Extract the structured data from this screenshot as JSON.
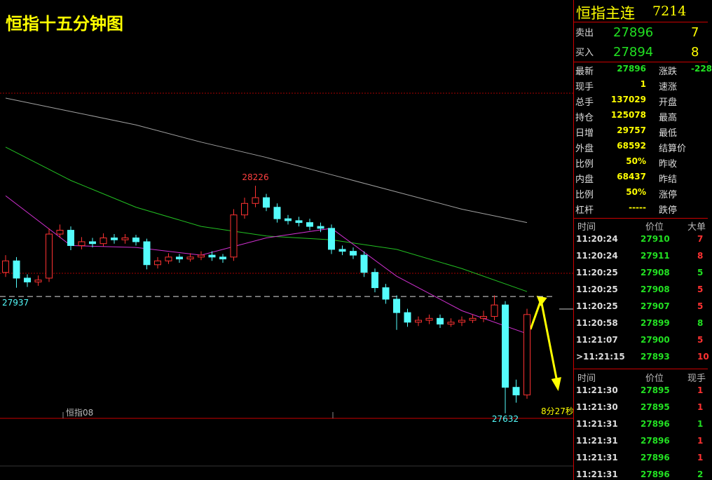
{
  "chart": {
    "type": "candlestick",
    "title": "恒指十五分钟图",
    "contract_label": "恒指08",
    "countdown": "8分27秒",
    "ylim": [
      27619,
      28711
    ],
    "open": [
      28000,
      28030,
      27985,
      27975,
      27985,
      28100,
      28110,
      28070,
      28080,
      28075,
      28090,
      28085,
      28090,
      28080,
      28020,
      28030,
      28040,
      28035,
      28040,
      28045,
      28040,
      28040,
      28150,
      28180,
      28195,
      28170,
      28140,
      28135,
      28130,
      28120,
      28115,
      28060,
      28055,
      28045,
      28000,
      27960,
      27930,
      27895,
      27870,
      27875,
      27880,
      27865,
      27870,
      27875,
      27880,
      27885,
      27915,
      27700,
      27680
    ],
    "high": [
      28045,
      28040,
      27995,
      27992,
      28115,
      28125,
      28120,
      28092,
      28090,
      28102,
      28100,
      28100,
      28098,
      28088,
      28040,
      28050,
      28048,
      28050,
      28055,
      28055,
      28048,
      28165,
      28195,
      28226,
      28205,
      28180,
      28150,
      28145,
      28140,
      28130,
      28125,
      28070,
      28065,
      28055,
      28010,
      27970,
      27940,
      27905,
      27885,
      27890,
      27890,
      27880,
      27885,
      27890,
      27900,
      27940,
      27925,
      27720,
      27905
    ],
    "low": [
      27988,
      27960,
      27962,
      27965,
      27975,
      28090,
      28058,
      28060,
      28065,
      28068,
      28075,
      28075,
      28070,
      28008,
      28010,
      28022,
      28025,
      28028,
      28032,
      28030,
      28025,
      28030,
      28140,
      28170,
      28160,
      28130,
      28125,
      28120,
      28110,
      28105,
      28048,
      28045,
      28035,
      27988,
      27948,
      27918,
      27850,
      27858,
      27860,
      27865,
      27855,
      27858,
      27860,
      27868,
      27870,
      27875,
      27632,
      27660,
      27670
    ],
    "close": [
      28030,
      27985,
      27975,
      27980,
      28100,
      28110,
      28070,
      28080,
      28075,
      28090,
      28085,
      28090,
      28080,
      28020,
      28030,
      28040,
      28035,
      28040,
      28045,
      28040,
      28035,
      28150,
      28180,
      28195,
      28170,
      28140,
      28135,
      28130,
      28120,
      28115,
      28060,
      28055,
      28045,
      28000,
      27960,
      27930,
      27895,
      27870,
      27875,
      27880,
      27865,
      27870,
      27875,
      27880,
      27885,
      27915,
      27700,
      27680,
      27890
    ],
    "up_color": "#ff3232",
    "down_color": "#54fcfc",
    "ma_lines": [
      {
        "color": "#a0a0a0",
        "x": [
          0,
          6,
          12,
          18,
          24,
          30,
          36,
          42,
          48
        ],
        "values": [
          28455,
          28420,
          28385,
          28340,
          28300,
          28255,
          28210,
          28165,
          28130
        ]
      },
      {
        "color": "#22c022",
        "x": [
          0,
          6,
          12,
          18,
          24,
          30,
          36,
          42,
          48
        ],
        "values": [
          28327,
          28240,
          28170,
          28120,
          28095,
          28085,
          28060,
          28010,
          27950
        ]
      },
      {
        "color": "#d030d0",
        "x": [
          0,
          6,
          12,
          18,
          24,
          30,
          36,
          42,
          48
        ],
        "values": [
          28200,
          28070,
          28065,
          28045,
          28090,
          28115,
          27990,
          27900,
          27840
        ]
      }
    ],
    "annotations": [
      {
        "text": "28226",
        "value": 28226,
        "index": 23
      },
      {
        "text": "27937",
        "value": 27937,
        "index": 0
      },
      {
        "text": "27632",
        "value": 27632,
        "index": 46
      }
    ],
    "reference_line": 27937
  },
  "panel": {
    "title": "恒指主连",
    "code": "7214",
    "quotes": [
      [
        "卖出",
        "27896",
        "7"
      ],
      [
        "买入",
        "27894",
        "8"
      ]
    ],
    "stats": [
      [
        "最新",
        "27896",
        "涨跌",
        "-228"
      ],
      [
        "现手",
        "1",
        "速涨",
        ""
      ],
      [
        "总手",
        "137029",
        "开盘",
        ""
      ],
      [
        "持仓",
        "125078",
        "最高",
        ""
      ],
      [
        "日增",
        "29757",
        "最低",
        ""
      ],
      [
        "外盘",
        "68592",
        "结算价",
        ""
      ],
      [
        "比例",
        "50%",
        "昨收",
        ""
      ],
      [
        "内盘",
        "68437",
        "昨结",
        ""
      ],
      [
        "比例",
        "50%",
        "涨停",
        ""
      ],
      [
        "杠杆",
        "-----",
        "跌停",
        ""
      ]
    ],
    "ticks_header": [
      "时间",
      "价位",
      "大单"
    ],
    "ticks": [
      [
        "11:20:24",
        "27910",
        "7"
      ],
      [
        "11:20:24",
        "27911",
        "8"
      ],
      [
        "11:20:25",
        "27908",
        "5"
      ],
      [
        "11:20:25",
        "27908",
        "5"
      ],
      [
        "11:20:25",
        "27907",
        "5"
      ],
      [
        "11:20:58",
        "27899",
        "8"
      ],
      [
        "11:21:07",
        "27900",
        "5"
      ],
      [
        ">11:21:15",
        "27893",
        "10"
      ]
    ],
    "trades_header": [
      "时间",
      "价位",
      "现手"
    ],
    "trades": [
      [
        "11:21:30",
        "27895",
        "1"
      ],
      [
        "11:21:30",
        "27895",
        "1"
      ],
      [
        "11:21:31",
        "27896",
        "1"
      ],
      [
        "11:21:31",
        "27896",
        "1"
      ],
      [
        "11:21:31",
        "27896",
        "1"
      ],
      [
        "11:21:31",
        "27896",
        "2"
      ]
    ]
  }
}
